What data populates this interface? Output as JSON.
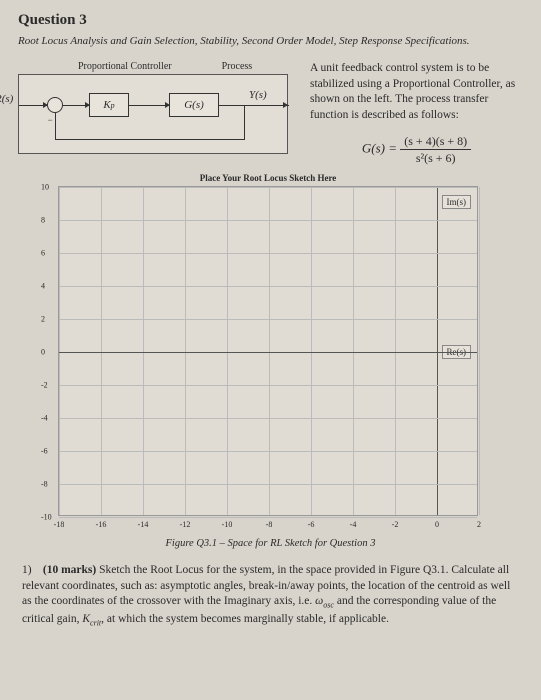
{
  "question": {
    "number": "Question 3",
    "subtitle": "Root Locus Analysis and Gain Selection, Stability, Second Order Model, Step Response Specifications.",
    "diagram_labels": {
      "controller": "Proportional Controller",
      "process": "Process"
    },
    "block": {
      "input": "R(s)",
      "output": "Y(s)",
      "kp": "K",
      "kp_sub": "p",
      "g": "G(s)",
      "minus": "−"
    },
    "description": "A unit feedback control system is to be stabilized using a Proportional Controller, as shown on the left. The process transfer function is described as follows:",
    "eq_lhs": "G(s) =",
    "eq_num": "(s + 4)(s + 8)",
    "eq_den": "s²(s + 6)"
  },
  "chart": {
    "title": "Place Your Root Locus Sketch Here",
    "y_ticks": [
      10,
      8,
      6,
      4,
      2,
      0,
      -2,
      -4,
      -6,
      -8,
      -10
    ],
    "x_ticks": [
      -18,
      -16,
      -14,
      -12,
      -10,
      -8,
      -6,
      -4,
      -2,
      0,
      2
    ],
    "im_label": "Im(s)",
    "re_label": "Re(s)",
    "xlim": [
      -18,
      2
    ],
    "ylim": [
      -10,
      10
    ],
    "grid_color": "#bbb7ae",
    "background_color": "#e0dcd3"
  },
  "caption": "Figure Q3.1 – Space for RL Sketch for Question 3",
  "part1": {
    "num": "1)",
    "marks": "(10 marks)",
    "text1": "Sketch the Root Locus for the system, in the space provided in Figure Q3.1. Calculate all relevant coordinates, such as: asymptotic angles, break-in/away points, the location of the centroid as well as the coordinates of the crossover with the Imaginary axis, i.e. ",
    "omega": "ω",
    "omega_sub": "osc",
    "text2": " and the corresponding value of the critical gain, ",
    "kcrit": "K",
    "kcrit_sub": "crit",
    "text3": ", at which the system becomes marginally stable, if applicable."
  }
}
